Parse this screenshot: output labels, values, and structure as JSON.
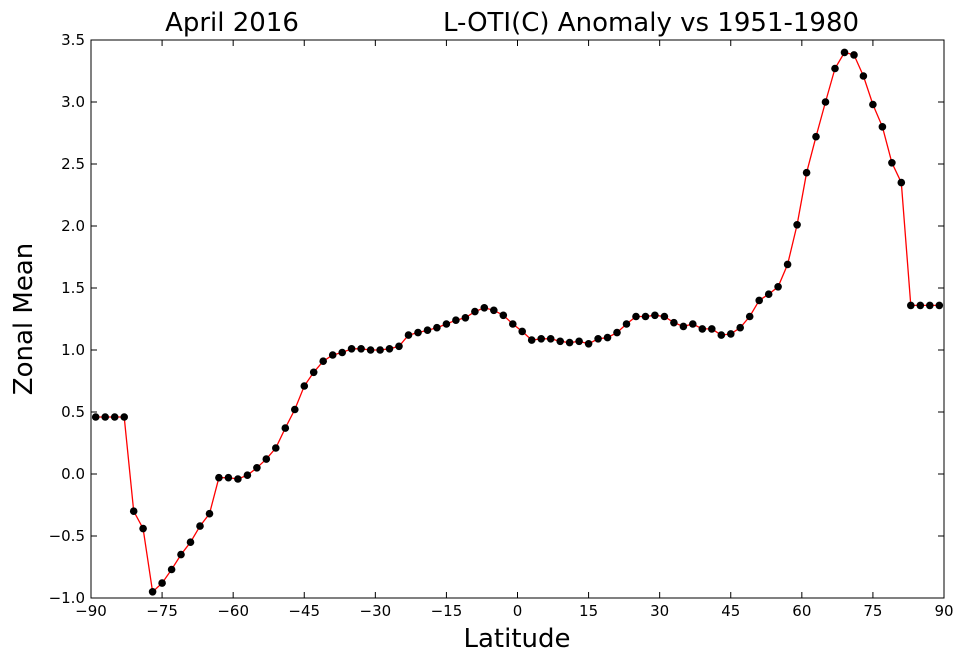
{
  "chart_data": {
    "type": "line",
    "title_left": "April 2016",
    "title_right": "L-OTI(C) Anomaly vs 1951-1980",
    "xlabel": "Latitude",
    "ylabel": "Zonal Mean",
    "xlim": [
      -90,
      90
    ],
    "ylim": [
      -1.0,
      3.5
    ],
    "xticks": [
      -90,
      -75,
      -60,
      -45,
      -30,
      -15,
      0,
      15,
      30,
      45,
      60,
      75,
      90
    ],
    "xtick_labels": [
      "−90",
      "−75",
      "−60",
      "−45",
      "−30",
      "−15",
      "0",
      "15",
      "30",
      "45",
      "60",
      "75",
      "90"
    ],
    "yticks": [
      -1.0,
      -0.5,
      0.0,
      0.5,
      1.0,
      1.5,
      2.0,
      2.5,
      3.0,
      3.5
    ],
    "ytick_labels": [
      "−1.0",
      "−0.5",
      "0.0",
      "0.5",
      "1.0",
      "1.5",
      "2.0",
      "2.5",
      "3.0",
      "3.5"
    ],
    "grid": false,
    "line_color": "#ff0000",
    "marker_color": "#000000",
    "x": [
      -89,
      -87,
      -85,
      -83,
      -81,
      -79,
      -77,
      -75,
      -73,
      -71,
      -69,
      -67,
      -65,
      -63,
      -61,
      -59,
      -57,
      -55,
      -53,
      -51,
      -49,
      -47,
      -45,
      -43,
      -41,
      -39,
      -37,
      -35,
      -33,
      -31,
      -29,
      -27,
      -25,
      -23,
      -21,
      -19,
      -17,
      -15,
      -13,
      -11,
      -9,
      -7,
      -5,
      -3,
      -1,
      1,
      3,
      5,
      7,
      9,
      11,
      13,
      15,
      17,
      19,
      21,
      23,
      25,
      27,
      29,
      31,
      33,
      35,
      37,
      39,
      41,
      43,
      45,
      47,
      49,
      51,
      53,
      55,
      57,
      59,
      61,
      63,
      65,
      67,
      69,
      71,
      73,
      75,
      77,
      79,
      81,
      83,
      85,
      87,
      89
    ],
    "y": [
      0.46,
      0.46,
      0.46,
      0.46,
      -0.3,
      -0.44,
      -0.95,
      -0.88,
      -0.77,
      -0.65,
      -0.55,
      -0.42,
      -0.32,
      -0.03,
      -0.03,
      -0.04,
      -0.01,
      0.05,
      0.12,
      0.21,
      0.37,
      0.52,
      0.71,
      0.82,
      0.91,
      0.96,
      0.98,
      1.01,
      1.01,
      1.0,
      1.0,
      1.01,
      1.03,
      1.12,
      1.14,
      1.16,
      1.18,
      1.21,
      1.24,
      1.26,
      1.31,
      1.34,
      1.32,
      1.28,
      1.21,
      1.15,
      1.08,
      1.09,
      1.09,
      1.07,
      1.06,
      1.07,
      1.05,
      1.09,
      1.1,
      1.14,
      1.21,
      1.27,
      1.27,
      1.28,
      1.27,
      1.22,
      1.19,
      1.21,
      1.17,
      1.17,
      1.12,
      1.13,
      1.18,
      1.27,
      1.4,
      1.45,
      1.51,
      1.69,
      2.01,
      2.43,
      2.72,
      3.0,
      3.27,
      3.4,
      3.38,
      3.21,
      2.98,
      2.8,
      2.51,
      2.35,
      1.36,
      1.36,
      1.36,
      1.36
    ]
  }
}
